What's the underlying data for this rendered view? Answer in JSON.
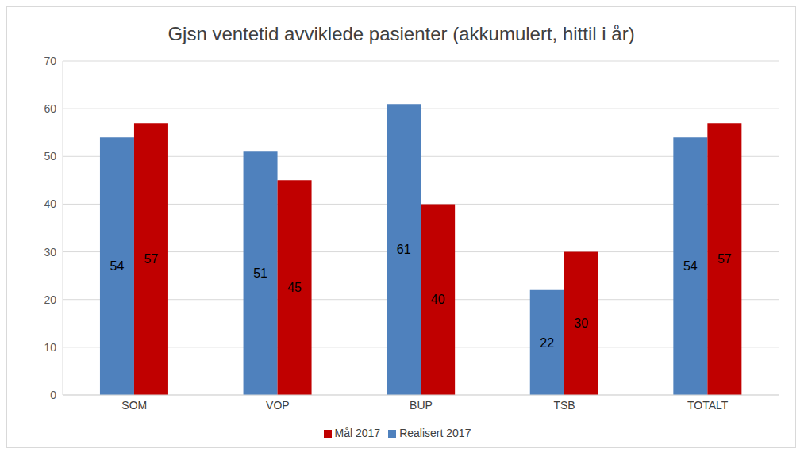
{
  "chart_data": {
    "type": "bar",
    "title": "Gjsn ventetid avviklede pasienter (akkumulert, hittil i år)",
    "categories": [
      "SOM",
      "VOP",
      "BUP",
      "TSB",
      "TOTALT"
    ],
    "series": [
      {
        "name": "Realisert 2017",
        "color": "#4f81bd",
        "values": [
          54,
          51,
          61,
          22,
          54
        ]
      },
      {
        "name": "Mål 2017",
        "color": "#c00000",
        "values": [
          57,
          45,
          40,
          30,
          57
        ]
      }
    ],
    "ylim": [
      0,
      70
    ],
    "yticks": [
      0,
      10,
      20,
      30,
      40,
      50,
      60,
      70
    ],
    "grid": true,
    "legend": "bottom",
    "data_labels": true
  }
}
